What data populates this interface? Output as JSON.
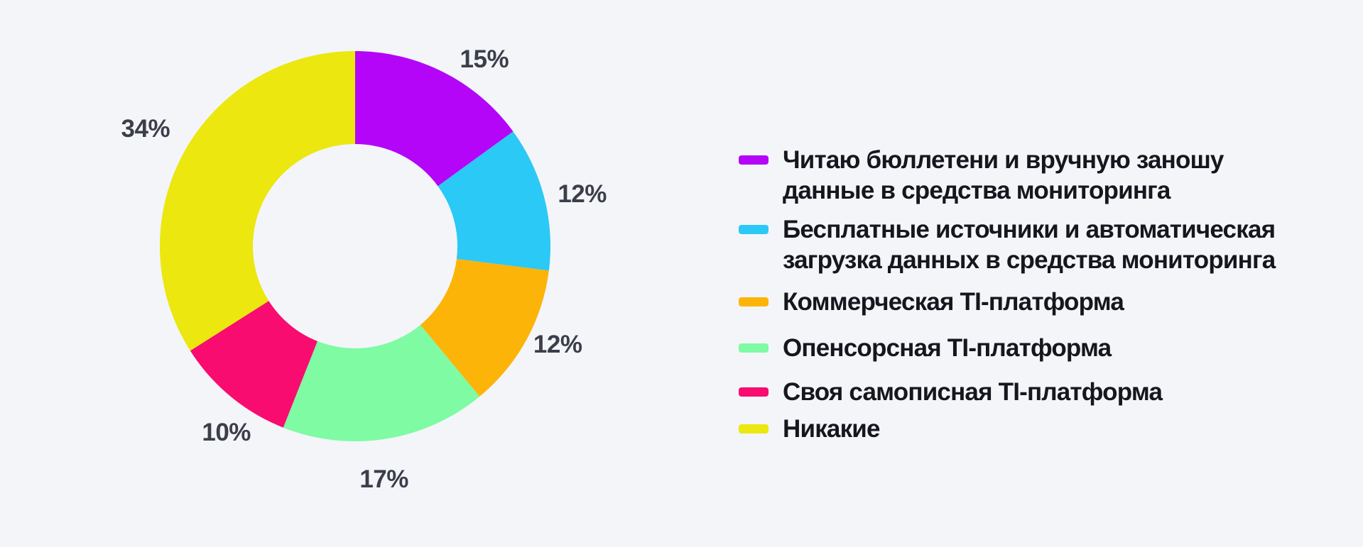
{
  "page": {
    "background_color": "#F4F5F9"
  },
  "chart_data": {
    "type": "pie",
    "subtype": "donut",
    "unit": "%",
    "start_angle_deg": 0,
    "direction": "clockwise",
    "legend_position": "right",
    "value_labels_position": "outside",
    "title": "",
    "slices": [
      {
        "label": "Читаю бюллетени и вручную заношу данные в средства мониторинга",
        "lines": [
          "Читаю бюллетени и вручную заношу",
          "данные в средства мониторинга"
        ],
        "value": 15,
        "color": "#B405F8"
      },
      {
        "label": "Бесплатные источники и автоматическая загрузка данных в средства мониторинга",
        "lines": [
          "Бесплатные источники и автоматическая",
          "загрузка данных в средства мониторинга"
        ],
        "value": 12,
        "color": "#2BC9F5"
      },
      {
        "label": "Коммерческая TI-платформа",
        "lines": [
          "Коммерческая TI-платформа"
        ],
        "value": 12,
        "color": "#FDB408"
      },
      {
        "label": "Опенсорсная TI-платформа",
        "lines": [
          "Опенсорсная TI-платформа"
        ],
        "value": 17,
        "color": "#7EFBA3"
      },
      {
        "label": "Своя самописная TI-платформа",
        "lines": [
          "Своя самописная TI-платформа"
        ],
        "value": 10,
        "color": "#F80C6F"
      },
      {
        "label": "Никакие",
        "lines": [
          "Никакие"
        ],
        "value": 34,
        "color": "#EBE70F"
      }
    ],
    "colors": {
      "value_label_text": "#3B3F4A",
      "legend_text": "#15171E",
      "background": "#F4F5F9"
    }
  }
}
